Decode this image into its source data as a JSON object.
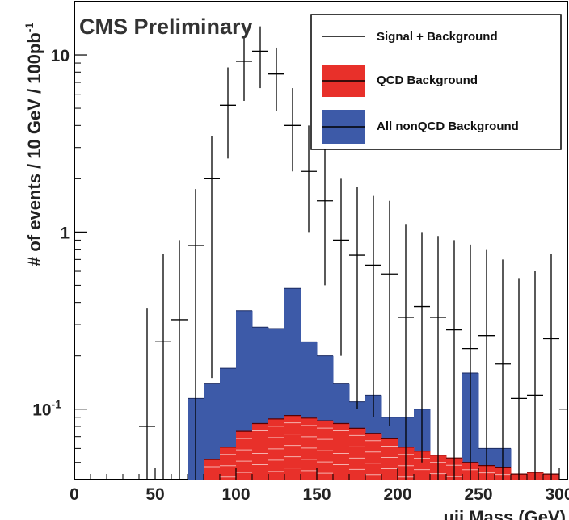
{
  "chart_data": {
    "type": "histogram",
    "title": "CMS Preliminary",
    "xlabel": "μjj Mass (GeV)",
    "ylabel": "# of events / 10 GeV / 100pb",
    "ylabel_superscript": "-1",
    "x_range": [
      0,
      305
    ],
    "y_range": [
      0.04,
      20
    ],
    "y_scale": "log",
    "bin_width": 10,
    "legend_position": "top-right",
    "x_ticks": [
      {
        "value": 0,
        "label": "0"
      },
      {
        "value": 50,
        "label": "50"
      },
      {
        "value": 100,
        "label": "100"
      },
      {
        "value": 150,
        "label": "150"
      },
      {
        "value": 200,
        "label": "200"
      },
      {
        "value": 250,
        "label": "250"
      },
      {
        "value": 300,
        "label": "300"
      }
    ],
    "y_ticks": [
      {
        "value": 10,
        "label": "10"
      },
      {
        "value": 1,
        "label": "1"
      },
      {
        "value": 0.1,
        "label": "10",
        "sup": "-1"
      }
    ],
    "legend": [
      {
        "name": "Signal + Background",
        "style": "line",
        "color": "#000000"
      },
      {
        "name": "QCD Background",
        "style": "fill",
        "color": "#e8302a"
      },
      {
        "name": "All nonQCD Background",
        "style": "fill",
        "color": "#3d5aa8"
      }
    ],
    "colors": {
      "qcd": "#e8302a",
      "nonqcd": "#3d5aa8",
      "qcd_stripe": "#f6b0ad"
    },
    "series": [
      {
        "name": "All nonQCD Background",
        "style": "stacked-fill",
        "bins": [
          {
            "x0": 70,
            "x1": 80,
            "y": 0.115
          },
          {
            "x0": 80,
            "x1": 90,
            "y": 0.14
          },
          {
            "x0": 90,
            "x1": 100,
            "y": 0.17
          },
          {
            "x0": 100,
            "x1": 110,
            "y": 0.36
          },
          {
            "x0": 110,
            "x1": 120,
            "y": 0.29
          },
          {
            "x0": 120,
            "x1": 130,
            "y": 0.285
          },
          {
            "x0": 130,
            "x1": 140,
            "y": 0.48
          },
          {
            "x0": 140,
            "x1": 150,
            "y": 0.24
          },
          {
            "x0": 150,
            "x1": 160,
            "y": 0.2
          },
          {
            "x0": 160,
            "x1": 170,
            "y": 0.14
          },
          {
            "x0": 170,
            "x1": 180,
            "y": 0.11
          },
          {
            "x0": 180,
            "x1": 190,
            "y": 0.12
          },
          {
            "x0": 190,
            "x1": 200,
            "y": 0.09
          },
          {
            "x0": 200,
            "x1": 210,
            "y": 0.09
          },
          {
            "x0": 210,
            "x1": 220,
            "y": 0.1
          },
          {
            "x0": 220,
            "x1": 230,
            "y": 0.05
          },
          {
            "x0": 230,
            "x1": 240,
            "y": 0.05
          },
          {
            "x0": 240,
            "x1": 250,
            "y": 0.16
          },
          {
            "x0": 250,
            "x1": 260,
            "y": 0.06
          },
          {
            "x0": 260,
            "x1": 270,
            "y": 0.06
          }
        ]
      },
      {
        "name": "QCD Background",
        "style": "fill",
        "bins": [
          {
            "x0": 80,
            "x1": 90,
            "y": 0.052
          },
          {
            "x0": 90,
            "x1": 100,
            "y": 0.061
          },
          {
            "x0": 100,
            "x1": 110,
            "y": 0.075
          },
          {
            "x0": 110,
            "x1": 120,
            "y": 0.083
          },
          {
            "x0": 120,
            "x1": 130,
            "y": 0.088
          },
          {
            "x0": 130,
            "x1": 140,
            "y": 0.092
          },
          {
            "x0": 140,
            "x1": 150,
            "y": 0.089
          },
          {
            "x0": 150,
            "x1": 160,
            "y": 0.086
          },
          {
            "x0": 160,
            "x1": 170,
            "y": 0.083
          },
          {
            "x0": 170,
            "x1": 180,
            "y": 0.078
          },
          {
            "x0": 180,
            "x1": 190,
            "y": 0.073
          },
          {
            "x0": 190,
            "x1": 200,
            "y": 0.068
          },
          {
            "x0": 200,
            "x1": 210,
            "y": 0.061
          },
          {
            "x0": 210,
            "x1": 220,
            "y": 0.058
          },
          {
            "x0": 220,
            "x1": 230,
            "y": 0.055
          },
          {
            "x0": 230,
            "x1": 240,
            "y": 0.053
          },
          {
            "x0": 240,
            "x1": 250,
            "y": 0.05
          },
          {
            "x0": 250,
            "x1": 260,
            "y": 0.048
          },
          {
            "x0": 260,
            "x1": 270,
            "y": 0.047
          },
          {
            "x0": 270,
            "x1": 280,
            "y": 0.043
          },
          {
            "x0": 280,
            "x1": 290,
            "y": 0.044
          },
          {
            "x0": 290,
            "x1": 300,
            "y": 0.043
          }
        ]
      },
      {
        "name": "Signal + Background",
        "style": "points-with-errors",
        "points": [
          {
            "x": 45,
            "y": 0.08,
            "lo": 0.04,
            "hi": 0.37
          },
          {
            "x": 55,
            "y": 0.24,
            "lo": 0.04,
            "hi": 0.75
          },
          {
            "x": 65,
            "y": 0.32,
            "lo": 0.04,
            "hi": 0.9
          },
          {
            "x": 75,
            "y": 0.84,
            "lo": 0.04,
            "hi": 1.75
          },
          {
            "x": 85,
            "y": 2.0,
            "lo": 0.15,
            "hi": 3.5
          },
          {
            "x": 95,
            "y": 5.2,
            "lo": 2.6,
            "hi": 8.5
          },
          {
            "x": 105,
            "y": 9.2,
            "lo": 5.5,
            "hi": 12.5
          },
          {
            "x": 115,
            "y": 10.5,
            "lo": 6.5,
            "hi": 14.5
          },
          {
            "x": 125,
            "y": 7.8,
            "lo": 4.8,
            "hi": 11.0
          },
          {
            "x": 135,
            "y": 4.0,
            "lo": 2.2,
            "hi": 6.5
          },
          {
            "x": 145,
            "y": 2.2,
            "lo": 1.0,
            "hi": 4.0
          },
          {
            "x": 155,
            "y": 1.5,
            "lo": 0.5,
            "hi": 3.0
          },
          {
            "x": 165,
            "y": 0.9,
            "lo": 0.2,
            "hi": 2.0
          },
          {
            "x": 175,
            "y": 0.74,
            "lo": 0.1,
            "hi": 1.8
          },
          {
            "x": 185,
            "y": 0.65,
            "lo": 0.09,
            "hi": 1.6
          },
          {
            "x": 195,
            "y": 0.58,
            "lo": 0.08,
            "hi": 1.5
          },
          {
            "x": 205,
            "y": 0.33,
            "lo": 0.04,
            "hi": 1.1
          },
          {
            "x": 215,
            "y": 0.38,
            "lo": 0.05,
            "hi": 1.0
          },
          {
            "x": 225,
            "y": 0.33,
            "lo": 0.04,
            "hi": 0.95
          },
          {
            "x": 235,
            "y": 0.28,
            "lo": 0.04,
            "hi": 0.9
          },
          {
            "x": 245,
            "y": 0.22,
            "lo": 0.04,
            "hi": 0.85
          },
          {
            "x": 255,
            "y": 0.26,
            "lo": 0.04,
            "hi": 0.8
          },
          {
            "x": 265,
            "y": 0.18,
            "lo": 0.04,
            "hi": 0.7
          },
          {
            "x": 275,
            "y": 0.115,
            "lo": 0.04,
            "hi": 0.55
          },
          {
            "x": 285,
            "y": 0.12,
            "lo": 0.04,
            "hi": 0.6
          },
          {
            "x": 295,
            "y": 0.25,
            "lo": 0.04,
            "hi": 0.75
          },
          {
            "x": 305,
            "y": 0.1,
            "lo": 0.04,
            "hi": 0.5
          }
        ]
      }
    ]
  }
}
